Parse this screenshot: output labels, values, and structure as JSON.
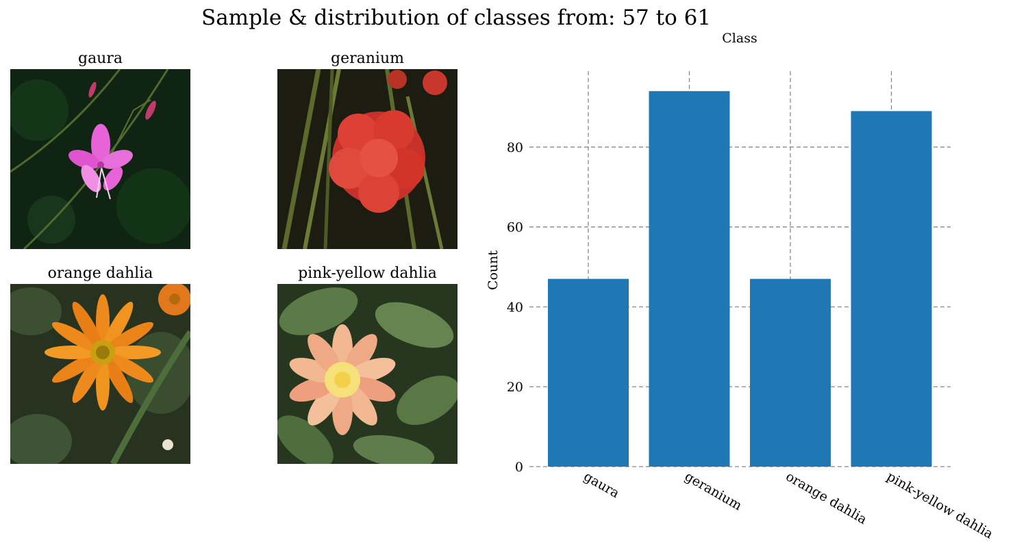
{
  "figure": {
    "title": "Sample & distribution of classes from: 57 to 61"
  },
  "samples": [
    {
      "label": "gaura",
      "palette": {
        "bg": "#0f2412",
        "petal": "#e863d8",
        "stem": "#4f6a2c"
      }
    },
    {
      "label": "geranium",
      "palette": {
        "bg": "#1c1c10",
        "petal": "#d83a2e",
        "stem": "#5c6a2c"
      }
    },
    {
      "label": "orange dahlia",
      "palette": {
        "bg": "#27331f",
        "petal": "#ee8a1c",
        "stem": "#4d6d3a"
      }
    },
    {
      "label": "pink-yellow dahlia",
      "palette": {
        "bg": "#26361f",
        "petal": "#f2b891",
        "stem": "#4f7a3a"
      }
    }
  ],
  "chart_data": {
    "type": "bar",
    "title": "Class",
    "xlabel": "",
    "ylabel": "Count",
    "categories": [
      "gaura",
      "geranium",
      "orange dahlia",
      "pink-yellow dahlia"
    ],
    "values": [
      47,
      94,
      47,
      89
    ],
    "ylim": [
      0,
      99
    ],
    "yticks": [
      0,
      20,
      40,
      60,
      80
    ],
    "grid": true,
    "bar_color": "#1f77b4",
    "grid_color": "#888888"
  }
}
